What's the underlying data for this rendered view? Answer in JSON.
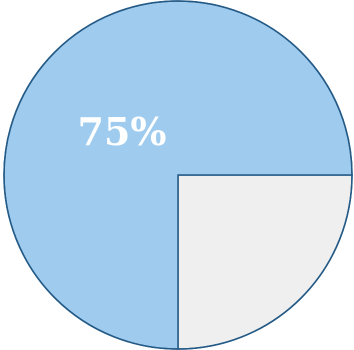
{
  "chart_data": {
    "type": "pie",
    "slices": [
      {
        "label": "75%",
        "value": 75,
        "color": "#9fccee"
      },
      {
        "label": "",
        "value": 25,
        "color": "#efefef"
      }
    ],
    "outline_color": "#245a86",
    "start_angle_deg": 90,
    "direction": "clockwise"
  }
}
